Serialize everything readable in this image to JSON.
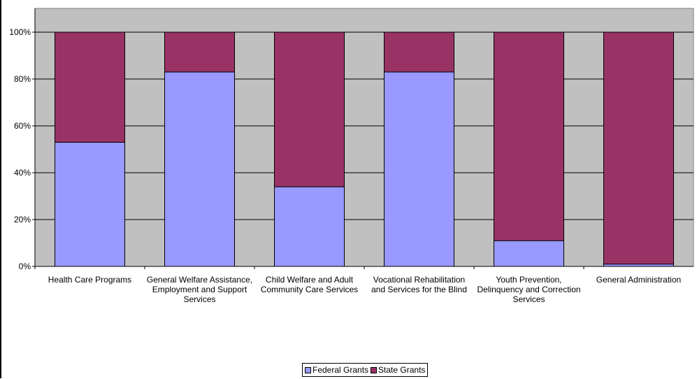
{
  "chart_data": {
    "type": "bar",
    "stacked": true,
    "percent": true,
    "categories": [
      "Health Care Programs",
      "General Welfare Assistance,\nEmployment and Support\nServices",
      "Child Welfare and Adult\nCommunity Care Services",
      "Vocational Rehabilitation\nand Services for the Blind",
      "Youth Prevention,\nDelinquency and Correction\nServices",
      "General Administration"
    ],
    "series": [
      {
        "name": "Federal Grants",
        "color": "#9999FF",
        "values": [
          53,
          83,
          34,
          83,
          11,
          1
        ]
      },
      {
        "name": "State Grants",
        "color": "#993366",
        "values": [
          47,
          17,
          66,
          17,
          89,
          99
        ]
      }
    ],
    "ylim": [
      0,
      100
    ],
    "yticks": [
      "0%",
      "20%",
      "40%",
      "60%",
      "80%",
      "100%"
    ],
    "grid": true,
    "plot_background": "#C0C0C0",
    "legend_position": "bottom"
  }
}
